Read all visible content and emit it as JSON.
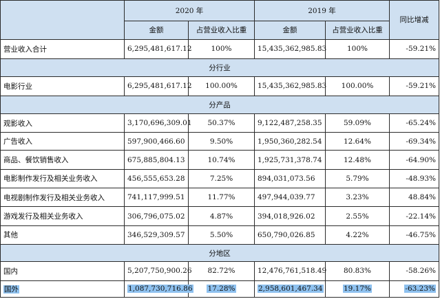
{
  "header": {
    "year_2020": "2020 年",
    "year_2019": "2019 年",
    "yoy": "同比增减",
    "amount_2020": "金额",
    "share_2020": "占营业收入比重",
    "amount_2019": "金额",
    "share_2019": "占营业收入比重"
  },
  "total": {
    "label": "营业收入合计",
    "amount_2020": "6,295,481,617.12",
    "share_2020": "100%",
    "amount_2019": "15,435,362,985.83",
    "share_2019": "100%",
    "yoy": "-59.21%"
  },
  "sections": {
    "industry": "分行业",
    "product": "分产品",
    "region": "分地区"
  },
  "industry_rows": [
    {
      "label": "电影行业",
      "amount_2020": "6,295,481,617.12",
      "share_2020": "100.00%",
      "amount_2019": "15,435,362,985.83",
      "share_2019": "100.00%",
      "yoy": "-59.21%"
    }
  ],
  "product_rows": [
    {
      "label": "观影收入",
      "amount_2020": "3,170,696,309.01",
      "share_2020": "50.37%",
      "amount_2019": "9,122,487,258.35",
      "share_2019": "59.09%",
      "yoy": "-65.24%"
    },
    {
      "label": "广告收入",
      "amount_2020": "597,900,466.60",
      "share_2020": "9.50%",
      "amount_2019": "1,950,360,282.54",
      "share_2019": "12.64%",
      "yoy": "-69.34%"
    },
    {
      "label": "商品、餐饮销售收入",
      "amount_2020": "675,885,804.13",
      "share_2020": "10.74%",
      "amount_2019": "1,925,731,378.74",
      "share_2019": "12.48%",
      "yoy": "-64.90%"
    },
    {
      "label": "电影制作发行及相关业务收入",
      "amount_2020": "456,555,653.28",
      "share_2020": "7.25%",
      "amount_2019": "894,031,073.56",
      "share_2019": "5.79%",
      "yoy": "-48.93%"
    },
    {
      "label": "电视剧制作发行及相关业务收入",
      "amount_2020": "741,117,999.51",
      "share_2020": "11.77%",
      "amount_2019": "497,944,039.77",
      "share_2019": "3.23%",
      "yoy": "48.84%"
    },
    {
      "label": "游戏发行及相关业务收入",
      "amount_2020": "306,796,075.02",
      "share_2020": "4.87%",
      "amount_2019": "394,018,926.02",
      "share_2019": "2.55%",
      "yoy": "-22.14%"
    },
    {
      "label": "其他",
      "amount_2020": "346,529,309.57",
      "share_2020": "5.50%",
      "amount_2019": "650,790,026.85",
      "share_2019": "4.22%",
      "yoy": "-46.75%"
    }
  ],
  "region_rows": [
    {
      "label": "国内",
      "amount_2020": "5,207,750,900.26",
      "share_2020": "82.72%",
      "amount_2019": "12,476,761,518.49",
      "share_2019": "80.83%",
      "yoy": "-58.26%"
    },
    {
      "label": "国外",
      "amount_2020": "1,087,730,716.86",
      "share_2020": "17.28%",
      "amount_2019": "2,958,601,467.34",
      "share_2019": "19.17%",
      "yoy": "-63.23%"
    }
  ],
  "colors": {
    "header_bg": "#cfe0f1",
    "highlight": "#8ec1ef",
    "border": "#2a2a2a"
  }
}
